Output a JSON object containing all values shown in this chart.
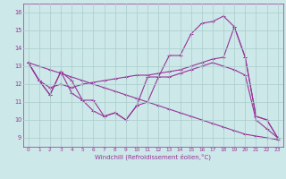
{
  "xlabel": "Windchill (Refroidissement éolien,°C)",
  "background_color": "#cce8e8",
  "grid_color": "#aacccc",
  "line_color": "#993399",
  "xlim": [
    -0.5,
    23.5
  ],
  "ylim": [
    8.5,
    16.5
  ],
  "xticks": [
    0,
    1,
    2,
    3,
    4,
    5,
    6,
    7,
    8,
    9,
    10,
    11,
    12,
    13,
    14,
    15,
    16,
    17,
    18,
    19,
    20,
    21,
    22,
    23
  ],
  "yticks": [
    9,
    10,
    11,
    12,
    13,
    14,
    15,
    16
  ],
  "series": [
    {
      "x": [
        0,
        1,
        2,
        3,
        4,
        5,
        6,
        7,
        8,
        9,
        10,
        11,
        12,
        13,
        14,
        15,
        16,
        17,
        18,
        19,
        20,
        21,
        22,
        23
      ],
      "y": [
        13.2,
        12.2,
        11.4,
        12.7,
        12.2,
        11.1,
        11.1,
        10.2,
        10.4,
        10.0,
        10.8,
        12.4,
        12.4,
        13.6,
        13.6,
        14.8,
        15.4,
        15.5,
        15.8,
        15.2,
        13.5,
        10.2,
        10.0,
        9.0
      ]
    },
    {
      "x": [
        0,
        1,
        2,
        3,
        4,
        5,
        6,
        7,
        8,
        9,
        10,
        11,
        12,
        13,
        14,
        15,
        16,
        17,
        18,
        19,
        20,
        21,
        22,
        23
      ],
      "y": [
        13.2,
        12.2,
        11.8,
        12.0,
        11.8,
        12.0,
        12.1,
        12.2,
        12.3,
        12.4,
        12.5,
        12.5,
        12.6,
        12.7,
        12.8,
        13.0,
        13.2,
        13.4,
        13.5,
        15.2,
        13.5,
        10.2,
        10.0,
        9.0
      ]
    },
    {
      "x": [
        0,
        1,
        2,
        3,
        4,
        5,
        6,
        7,
        8,
        9,
        10,
        11,
        12,
        13,
        14,
        15,
        16,
        17,
        18,
        19,
        20,
        21,
        22,
        23
      ],
      "y": [
        13.2,
        13.0,
        12.8,
        12.6,
        12.4,
        12.2,
        12.0,
        11.8,
        11.6,
        11.4,
        11.2,
        11.0,
        10.8,
        10.6,
        10.4,
        10.2,
        10.0,
        9.8,
        9.6,
        9.4,
        9.2,
        9.1,
        9.0,
        8.9
      ]
    },
    {
      "x": [
        0,
        1,
        2,
        3,
        4,
        5,
        6,
        7,
        8,
        9,
        10,
        11,
        12,
        13,
        14,
        15,
        16,
        17,
        18,
        19,
        20,
        21,
        22,
        23
      ],
      "y": [
        13.2,
        12.2,
        11.4,
        12.7,
        11.5,
        11.1,
        10.5,
        10.2,
        10.4,
        10.0,
        10.8,
        11.0,
        12.4,
        12.4,
        12.6,
        12.8,
        13.0,
        13.2,
        13.0,
        12.8,
        12.5,
        10.0,
        9.5,
        9.0
      ]
    }
  ]
}
